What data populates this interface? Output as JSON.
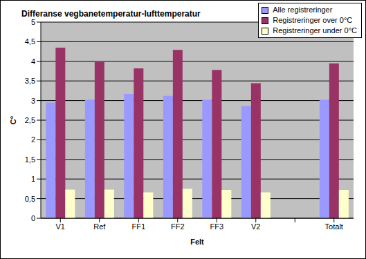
{
  "chart_data": {
    "type": "bar",
    "title": "Differanse vegbanetemperatur-lufttemperatur",
    "x_label": "Felt",
    "y_label": "C°",
    "categories": [
      "V1",
      "Ref",
      "FF1",
      "FF2",
      "FF3",
      "V2",
      null,
      "Totalt"
    ],
    "series": [
      {
        "name": "Alle registreringer",
        "color": "#9999ff",
        "values": [
          2.95,
          3.02,
          3.17,
          3.12,
          3.02,
          2.86,
          null,
          3.02
        ]
      },
      {
        "name": "Registreringer over 0°C",
        "color": "#993366",
        "values": [
          4.35,
          3.98,
          3.82,
          4.29,
          3.78,
          3.44,
          null,
          3.95
        ]
      },
      {
        "name": "Registreringer under 0°C",
        "color": "#ffffcc",
        "values": [
          0.73,
          0.73,
          0.66,
          0.75,
          0.72,
          0.66,
          null,
          0.72
        ]
      }
    ],
    "ylim": [
      0,
      5
    ],
    "yticks": [
      0,
      {
        "value": 0.5,
        "label": "0,5"
      },
      1,
      {
        "value": 1.5,
        "label": "1,5"
      },
      2,
      {
        "value": 2.5,
        "label": "2,5"
      },
      3,
      {
        "value": 3.5,
        "label": "3,5"
      },
      4,
      {
        "value": 4.5,
        "label": "4,5"
      },
      5
    ],
    "grid": true,
    "legend": "upper right"
  }
}
